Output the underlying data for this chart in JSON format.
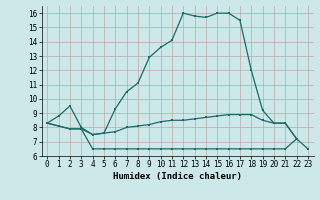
{
  "title": "",
  "xlabel": "Humidex (Indice chaleur)",
  "ylabel": "",
  "xlim": [
    -0.5,
    23.5
  ],
  "ylim": [
    6,
    16.5
  ],
  "yticks": [
    6,
    7,
    8,
    9,
    10,
    11,
    12,
    13,
    14,
    15,
    16
  ],
  "xticks": [
    0,
    1,
    2,
    3,
    4,
    5,
    6,
    7,
    8,
    9,
    10,
    11,
    12,
    13,
    14,
    15,
    16,
    17,
    18,
    19,
    20,
    21,
    22,
    23
  ],
  "bg_color": "#cce8e8",
  "line_color": "#1a6b6b",
  "grid_color": "#c8d8d8",
  "line1_x": [
    0,
    1,
    2,
    3,
    4,
    5,
    6,
    7,
    8,
    9,
    10,
    11,
    12,
    13,
    14,
    15,
    16,
    17,
    18,
    19,
    20,
    21,
    22
  ],
  "line1_y": [
    8.3,
    8.8,
    9.5,
    8.0,
    7.5,
    7.6,
    9.3,
    10.5,
    11.1,
    12.9,
    13.6,
    14.1,
    16.0,
    15.8,
    15.7,
    16.0,
    16.0,
    15.5,
    12.0,
    9.2,
    8.3,
    8.3,
    7.2
  ],
  "line2_x": [
    0,
    1,
    2,
    3,
    4,
    5,
    6,
    7,
    8,
    9,
    10,
    11,
    12,
    13,
    14,
    15,
    16,
    17,
    18,
    19,
    20,
    21,
    22
  ],
  "line2_y": [
    8.3,
    8.1,
    7.9,
    7.9,
    7.5,
    7.6,
    7.7,
    8.0,
    8.1,
    8.2,
    8.4,
    8.5,
    8.5,
    8.6,
    8.7,
    8.8,
    8.9,
    8.9,
    8.9,
    8.5,
    8.3,
    8.3,
    7.2
  ],
  "line3_x": [
    0,
    1,
    2,
    3,
    4,
    5,
    6,
    7,
    8,
    9,
    10,
    11,
    12,
    13,
    14,
    15,
    16,
    17,
    18,
    19,
    20,
    21,
    22,
    23
  ],
  "line3_y": [
    8.3,
    8.1,
    7.9,
    7.9,
    6.5,
    6.5,
    6.5,
    6.5,
    6.5,
    6.5,
    6.5,
    6.5,
    6.5,
    6.5,
    6.5,
    6.5,
    6.5,
    6.5,
    6.5,
    6.5,
    6.5,
    6.5,
    7.2,
    6.5
  ]
}
